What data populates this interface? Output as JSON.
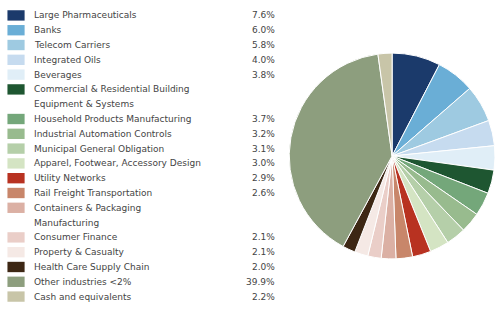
{
  "chart_data": {
    "type": "pie",
    "categories": [
      "Large Pharmaceuticals",
      "Banks",
      "Telecom Carriers",
      "Integrated Oils",
      "Beverages",
      "Commercial & Residential Building\nEquipment & Systems",
      "Household Products Manufacturing",
      "Industrial Automation Controls",
      "Municipal General Obligation",
      "Apparel, Footwear, Accessory Design",
      "Utility Networks",
      "Rail Freight Transportation",
      "Containers & Packaging\nManufacturing",
      "Consumer Finance",
      "Property & Casualty",
      "Health Care Supply Chain",
      "Other industries <2%",
      "Cash and equivalents"
    ],
    "values": [
      7.6,
      6.0,
      5.8,
      4.0,
      3.8,
      3.7,
      3.7,
      3.2,
      3.1,
      3.0,
      2.9,
      2.6,
      2.3,
      2.1,
      2.1,
      2.0,
      39.9,
      2.2
    ],
    "value_labels": [
      "7.6%",
      "6.0%",
      "5.8%",
      "4.0%",
      "3.8%",
      null,
      "3.7%",
      "3.2%",
      "3.1%",
      "3.0%",
      "2.9%",
      "2.6%",
      null,
      "2.1%",
      "2.1%",
      "2.0%",
      "39.9%",
      "2.2%"
    ],
    "colors": [
      "#1b3a6b",
      "#6aaed6",
      "#9ecae1",
      "#c6dbef",
      "#e0eef7",
      "#1e5631",
      "#74a77a",
      "#98bb8e",
      "#b5cfa9",
      "#d4e4c3",
      "#b83221",
      "#c8866a",
      "#dbb0a4",
      "#eacec8",
      "#f5e9e5",
      "#3d2714",
      "#8d9e7e",
      "#c8c5a8"
    ]
  }
}
